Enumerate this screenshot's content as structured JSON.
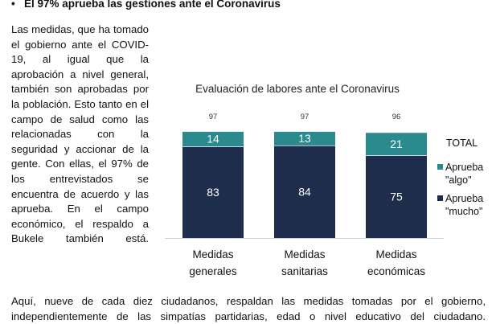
{
  "heading": "El 97% aprueba las gestiones ante el Coronavirus",
  "paragraph_side": "Las medidas, que ha tomado el gobierno ante el COVID-19, al igual que la aprobación a nivel general, también son aprobadas por la población. Esto tanto en el campo de salud como las relacionadas con la seguridad y accionar de la gente. Con ellas, el 97% de los entrevistados se encuentra de acuerdo y las aprueba. En el campo económico, el respaldo a Bukele también está.",
  "paragraph_tail": "Aquí, nueve de cada diez ciudadanos, respaldan las medidas tomadas por el gobierno, independientemente de las simpatías partidarias, edad o nivel educativo del ciudadano.",
  "chart_data": {
    "type": "bar",
    "stacked": true,
    "title": "Evaluación de labores ante el Coronavirus",
    "categories": [
      [
        "Medidas",
        "generales"
      ],
      [
        "Medidas",
        "sanitarias"
      ],
      [
        "Medidas",
        "económicas"
      ]
    ],
    "series": [
      {
        "name": [
          "Aprueba",
          "\"mucho\""
        ],
        "color": "#1f2d4d",
        "values": [
          83,
          84,
          75
        ]
      },
      {
        "name": [
          "Aprueba",
          "\"algo\""
        ],
        "color": "#2a8a8e",
        "values": [
          14,
          13,
          21
        ]
      }
    ],
    "totals": [
      97,
      97,
      96
    ],
    "totals_label": "TOTAL",
    "ylim": [
      0,
      100
    ],
    "grid": false,
    "legend": "right"
  }
}
